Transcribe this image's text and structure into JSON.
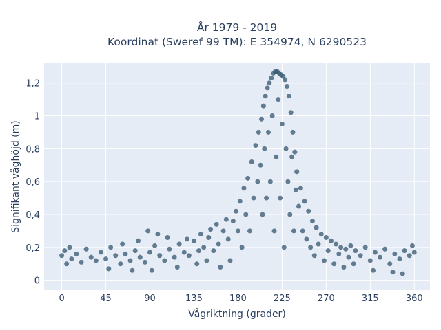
{
  "chart_data": {
    "type": "scatter",
    "title_lines": [
      "År 1979 - 2019",
      "Koordinat (Sweref 99 TM): E 354974, N 6290523"
    ],
    "xlabel": "Vågriktning (grader)",
    "ylabel": "Signifikant våghöjd (m)",
    "xlim": [
      -18,
      376
    ],
    "ylim": [
      -0.06,
      1.32
    ],
    "x_ticks": [
      0,
      45,
      90,
      135,
      180,
      225,
      270,
      315,
      360
    ],
    "x_tick_labels": [
      "0",
      "45",
      "90",
      "135",
      "180",
      "225",
      "270",
      "315",
      "360"
    ],
    "y_ticks": [
      0,
      0.2,
      0.4,
      0.6,
      0.8,
      1,
      1.2
    ],
    "y_tick_labels": [
      "0",
      "0,2",
      "0,4",
      "0,6",
      "0,8",
      "1",
      "1,2"
    ],
    "grid": true,
    "series": [
      {
        "color": "#34566d",
        "points": [
          [
            0,
            0.15
          ],
          [
            3,
            0.18
          ],
          [
            5,
            0.1
          ],
          [
            8,
            0.2
          ],
          [
            10,
            0.13
          ],
          [
            15,
            0.16
          ],
          [
            20,
            0.11
          ],
          [
            25,
            0.19
          ],
          [
            30,
            0.14
          ],
          [
            35,
            0.12
          ],
          [
            40,
            0.17
          ],
          [
            45,
            0.13
          ],
          [
            48,
            0.07
          ],
          [
            50,
            0.2
          ],
          [
            55,
            0.15
          ],
          [
            60,
            0.1
          ],
          [
            62,
            0.22
          ],
          [
            65,
            0.16
          ],
          [
            70,
            0.12
          ],
          [
            72,
            0.06
          ],
          [
            75,
            0.18
          ],
          [
            78,
            0.24
          ],
          [
            80,
            0.14
          ],
          [
            85,
            0.11
          ],
          [
            88,
            0.3
          ],
          [
            90,
            0.17
          ],
          [
            92,
            0.06
          ],
          [
            95,
            0.21
          ],
          [
            98,
            0.28
          ],
          [
            100,
            0.15
          ],
          [
            105,
            0.12
          ],
          [
            108,
            0.26
          ],
          [
            110,
            0.19
          ],
          [
            115,
            0.14
          ],
          [
            118,
            0.08
          ],
          [
            120,
            0.22
          ],
          [
            125,
            0.17
          ],
          [
            128,
            0.25
          ],
          [
            130,
            0.15
          ],
          [
            135,
            0.24
          ],
          [
            138,
            0.1
          ],
          [
            140,
            0.18
          ],
          [
            142,
            0.28
          ],
          [
            145,
            0.2
          ],
          [
            148,
            0.12
          ],
          [
            150,
            0.26
          ],
          [
            152,
            0.31
          ],
          [
            155,
            0.18
          ],
          [
            158,
            0.34
          ],
          [
            160,
            0.22
          ],
          [
            162,
            0.08
          ],
          [
            165,
            0.3
          ],
          [
            168,
            0.37
          ],
          [
            170,
            0.25
          ],
          [
            172,
            0.12
          ],
          [
            175,
            0.36
          ],
          [
            178,
            0.42
          ],
          [
            180,
            0.3
          ],
          [
            182,
            0.48
          ],
          [
            184,
            0.2
          ],
          [
            186,
            0.56
          ],
          [
            188,
            0.4
          ],
          [
            190,
            0.62
          ],
          [
            192,
            0.3
          ],
          [
            194,
            0.72
          ],
          [
            196,
            0.5
          ],
          [
            198,
            0.82
          ],
          [
            200,
            0.6
          ],
          [
            201,
            0.9
          ],
          [
            203,
            0.7
          ],
          [
            204,
            0.98
          ],
          [
            205,
            0.4
          ],
          [
            206,
            1.06
          ],
          [
            207,
            0.8
          ],
          [
            208,
            1.12
          ],
          [
            209,
            0.5
          ],
          [
            210,
            1.17
          ],
          [
            211,
            0.9
          ],
          [
            212,
            1.2
          ],
          [
            213,
            0.6
          ],
          [
            214,
            1.23
          ],
          [
            215,
            1.0
          ],
          [
            216,
            1.26
          ],
          [
            217,
            0.3
          ],
          [
            218,
            1.27
          ],
          [
            219,
            0.75
          ],
          [
            220,
            1.27
          ],
          [
            221,
            1.1
          ],
          [
            222,
            1.26
          ],
          [
            223,
            0.5
          ],
          [
            224,
            1.25
          ],
          [
            225,
            0.95
          ],
          [
            226,
            1.24
          ],
          [
            227,
            0.2
          ],
          [
            228,
            1.22
          ],
          [
            229,
            0.8
          ],
          [
            230,
            1.18
          ],
          [
            231,
            0.6
          ],
          [
            232,
            1.12
          ],
          [
            233,
            0.4
          ],
          [
            234,
            1.02
          ],
          [
            235,
            0.75
          ],
          [
            236,
            0.9
          ],
          [
            237,
            0.3
          ],
          [
            238,
            0.78
          ],
          [
            239,
            0.55
          ],
          [
            240,
            0.66
          ],
          [
            242,
            0.45
          ],
          [
            244,
            0.56
          ],
          [
            246,
            0.3
          ],
          [
            248,
            0.48
          ],
          [
            250,
            0.25
          ],
          [
            252,
            0.42
          ],
          [
            254,
            0.2
          ],
          [
            256,
            0.36
          ],
          [
            258,
            0.15
          ],
          [
            260,
            0.32
          ],
          [
            262,
            0.22
          ],
          [
            265,
            0.28
          ],
          [
            268,
            0.12
          ],
          [
            270,
            0.26
          ],
          [
            272,
            0.18
          ],
          [
            275,
            0.24
          ],
          [
            278,
            0.1
          ],
          [
            280,
            0.22
          ],
          [
            283,
            0.16
          ],
          [
            285,
            0.2
          ],
          [
            288,
            0.08
          ],
          [
            290,
            0.19
          ],
          [
            293,
            0.14
          ],
          [
            295,
            0.21
          ],
          [
            298,
            0.1
          ],
          [
            300,
            0.18
          ],
          [
            305,
            0.15
          ],
          [
            310,
            0.2
          ],
          [
            315,
            0.12
          ],
          [
            318,
            0.06
          ],
          [
            320,
            0.17
          ],
          [
            325,
            0.14
          ],
          [
            330,
            0.19
          ],
          [
            335,
            0.1
          ],
          [
            338,
            0.05
          ],
          [
            340,
            0.16
          ],
          [
            345,
            0.13
          ],
          [
            348,
            0.04
          ],
          [
            350,
            0.18
          ],
          [
            355,
            0.15
          ],
          [
            358,
            0.21
          ],
          [
            360,
            0.17
          ]
        ]
      }
    ]
  }
}
